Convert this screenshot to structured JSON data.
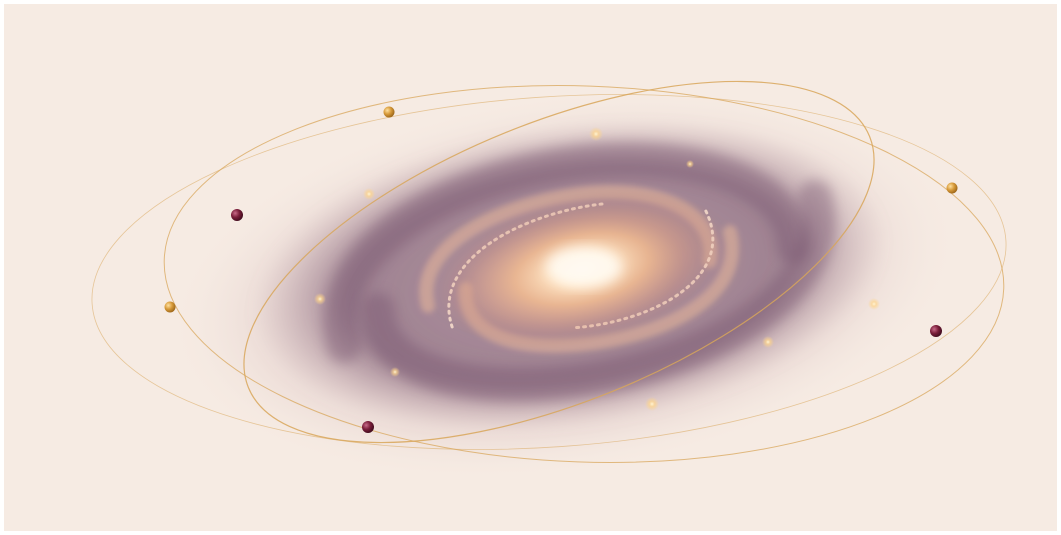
{
  "scene": {
    "subject": "spiral-galaxy",
    "colors": {
      "background": "#f6ebe3",
      "core": "#fff1de",
      "inner_glow": "#f2c9a0",
      "arm": "#7b5872",
      "outer_haze": "#d9bfc0",
      "orbit_line": "#d8a659",
      "planet_gold": "#d79a3a",
      "planet_maroon": "#7a1e3a",
      "sparkle": "#ffd58a"
    },
    "orbits": [
      {
        "name": "orbit-large-tilted"
      },
      {
        "name": "orbit-outer-wide"
      },
      {
        "name": "orbit-inner-tight"
      }
    ],
    "planets": [
      {
        "name": "planet-gold-top",
        "color": "gold"
      },
      {
        "name": "planet-gold-right",
        "color": "gold"
      },
      {
        "name": "planet-gold-left",
        "color": "gold"
      },
      {
        "name": "planet-maroon-left",
        "color": "maroon"
      },
      {
        "name": "planet-maroon-right",
        "color": "maroon"
      },
      {
        "name": "planet-maroon-bottom",
        "color": "maroon"
      }
    ]
  }
}
